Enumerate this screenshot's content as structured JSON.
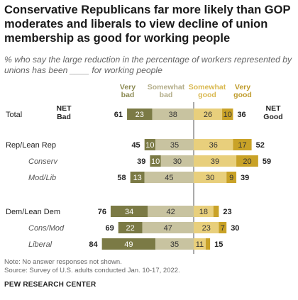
{
  "title": "Conservative Republicans far more likely than GOP moderates and liberals to view decline of union membership as good for working people",
  "subtitle": "% who say the large reduction in the percentage of workers represented by unions has been ____ for working people",
  "note": "Note: No answer responses not shown.",
  "source": "Source: Survey of U.S. adults conducted Jan. 10-17, 2022.",
  "organization": "PEW RESEARCH CENTER",
  "chart_data": {
    "type": "bar",
    "orientation": "horizontal-diverging",
    "legend": {
      "very_bad": "Very bad",
      "somewhat_bad": "Somewhat bad",
      "somewhat_good": "Somewhat good",
      "very_good": "Very good"
    },
    "net_bad_label": "NET Bad",
    "net_good_label": "NET Good",
    "colors": {
      "very_bad": "#7b7a45",
      "somewhat_bad": "#c8c3a0",
      "somewhat_good": "#e8cf7c",
      "very_good": "#c9a227",
      "very_bad_text": "#8c8a53",
      "somewhat_bad_text": "#b3ad89",
      "somewhat_good_text": "#d9b84f",
      "very_good_text": "#bf9b2b"
    },
    "rows": [
      {
        "label": "Total",
        "italic": false,
        "very_bad": 23,
        "somewhat_bad": 38,
        "somewhat_good": 26,
        "very_good": 10,
        "net_bad": 61,
        "net_good": 36
      },
      {
        "label": "Rep/Lean Rep",
        "italic": false,
        "very_bad": 10,
        "somewhat_bad": 35,
        "somewhat_good": 36,
        "very_good": 17,
        "net_bad": 45,
        "net_good": 52
      },
      {
        "label": "Conserv",
        "italic": true,
        "very_bad": 10,
        "somewhat_bad": 30,
        "somewhat_good": 39,
        "very_good": 20,
        "net_bad": 39,
        "net_good": 59
      },
      {
        "label": "Mod/Lib",
        "italic": true,
        "very_bad": 13,
        "somewhat_bad": 45,
        "somewhat_good": 30,
        "very_good": 9,
        "net_bad": 58,
        "net_good": 39
      },
      {
        "label": "Dem/Lean Dem",
        "italic": false,
        "very_bad": 34,
        "somewhat_bad": 42,
        "somewhat_good": 18,
        "very_good": 5,
        "net_bad": 76,
        "net_good": 23
      },
      {
        "label": "Cons/Mod",
        "italic": true,
        "very_bad": 22,
        "somewhat_bad": 47,
        "somewhat_good": 23,
        "very_good": 7,
        "net_bad": 69,
        "net_good": 30
      },
      {
        "label": "Liberal",
        "italic": true,
        "very_bad": 49,
        "somewhat_bad": 35,
        "somewhat_good": 11,
        "very_good": 4,
        "net_bad": 84,
        "net_good": 15
      }
    ]
  }
}
